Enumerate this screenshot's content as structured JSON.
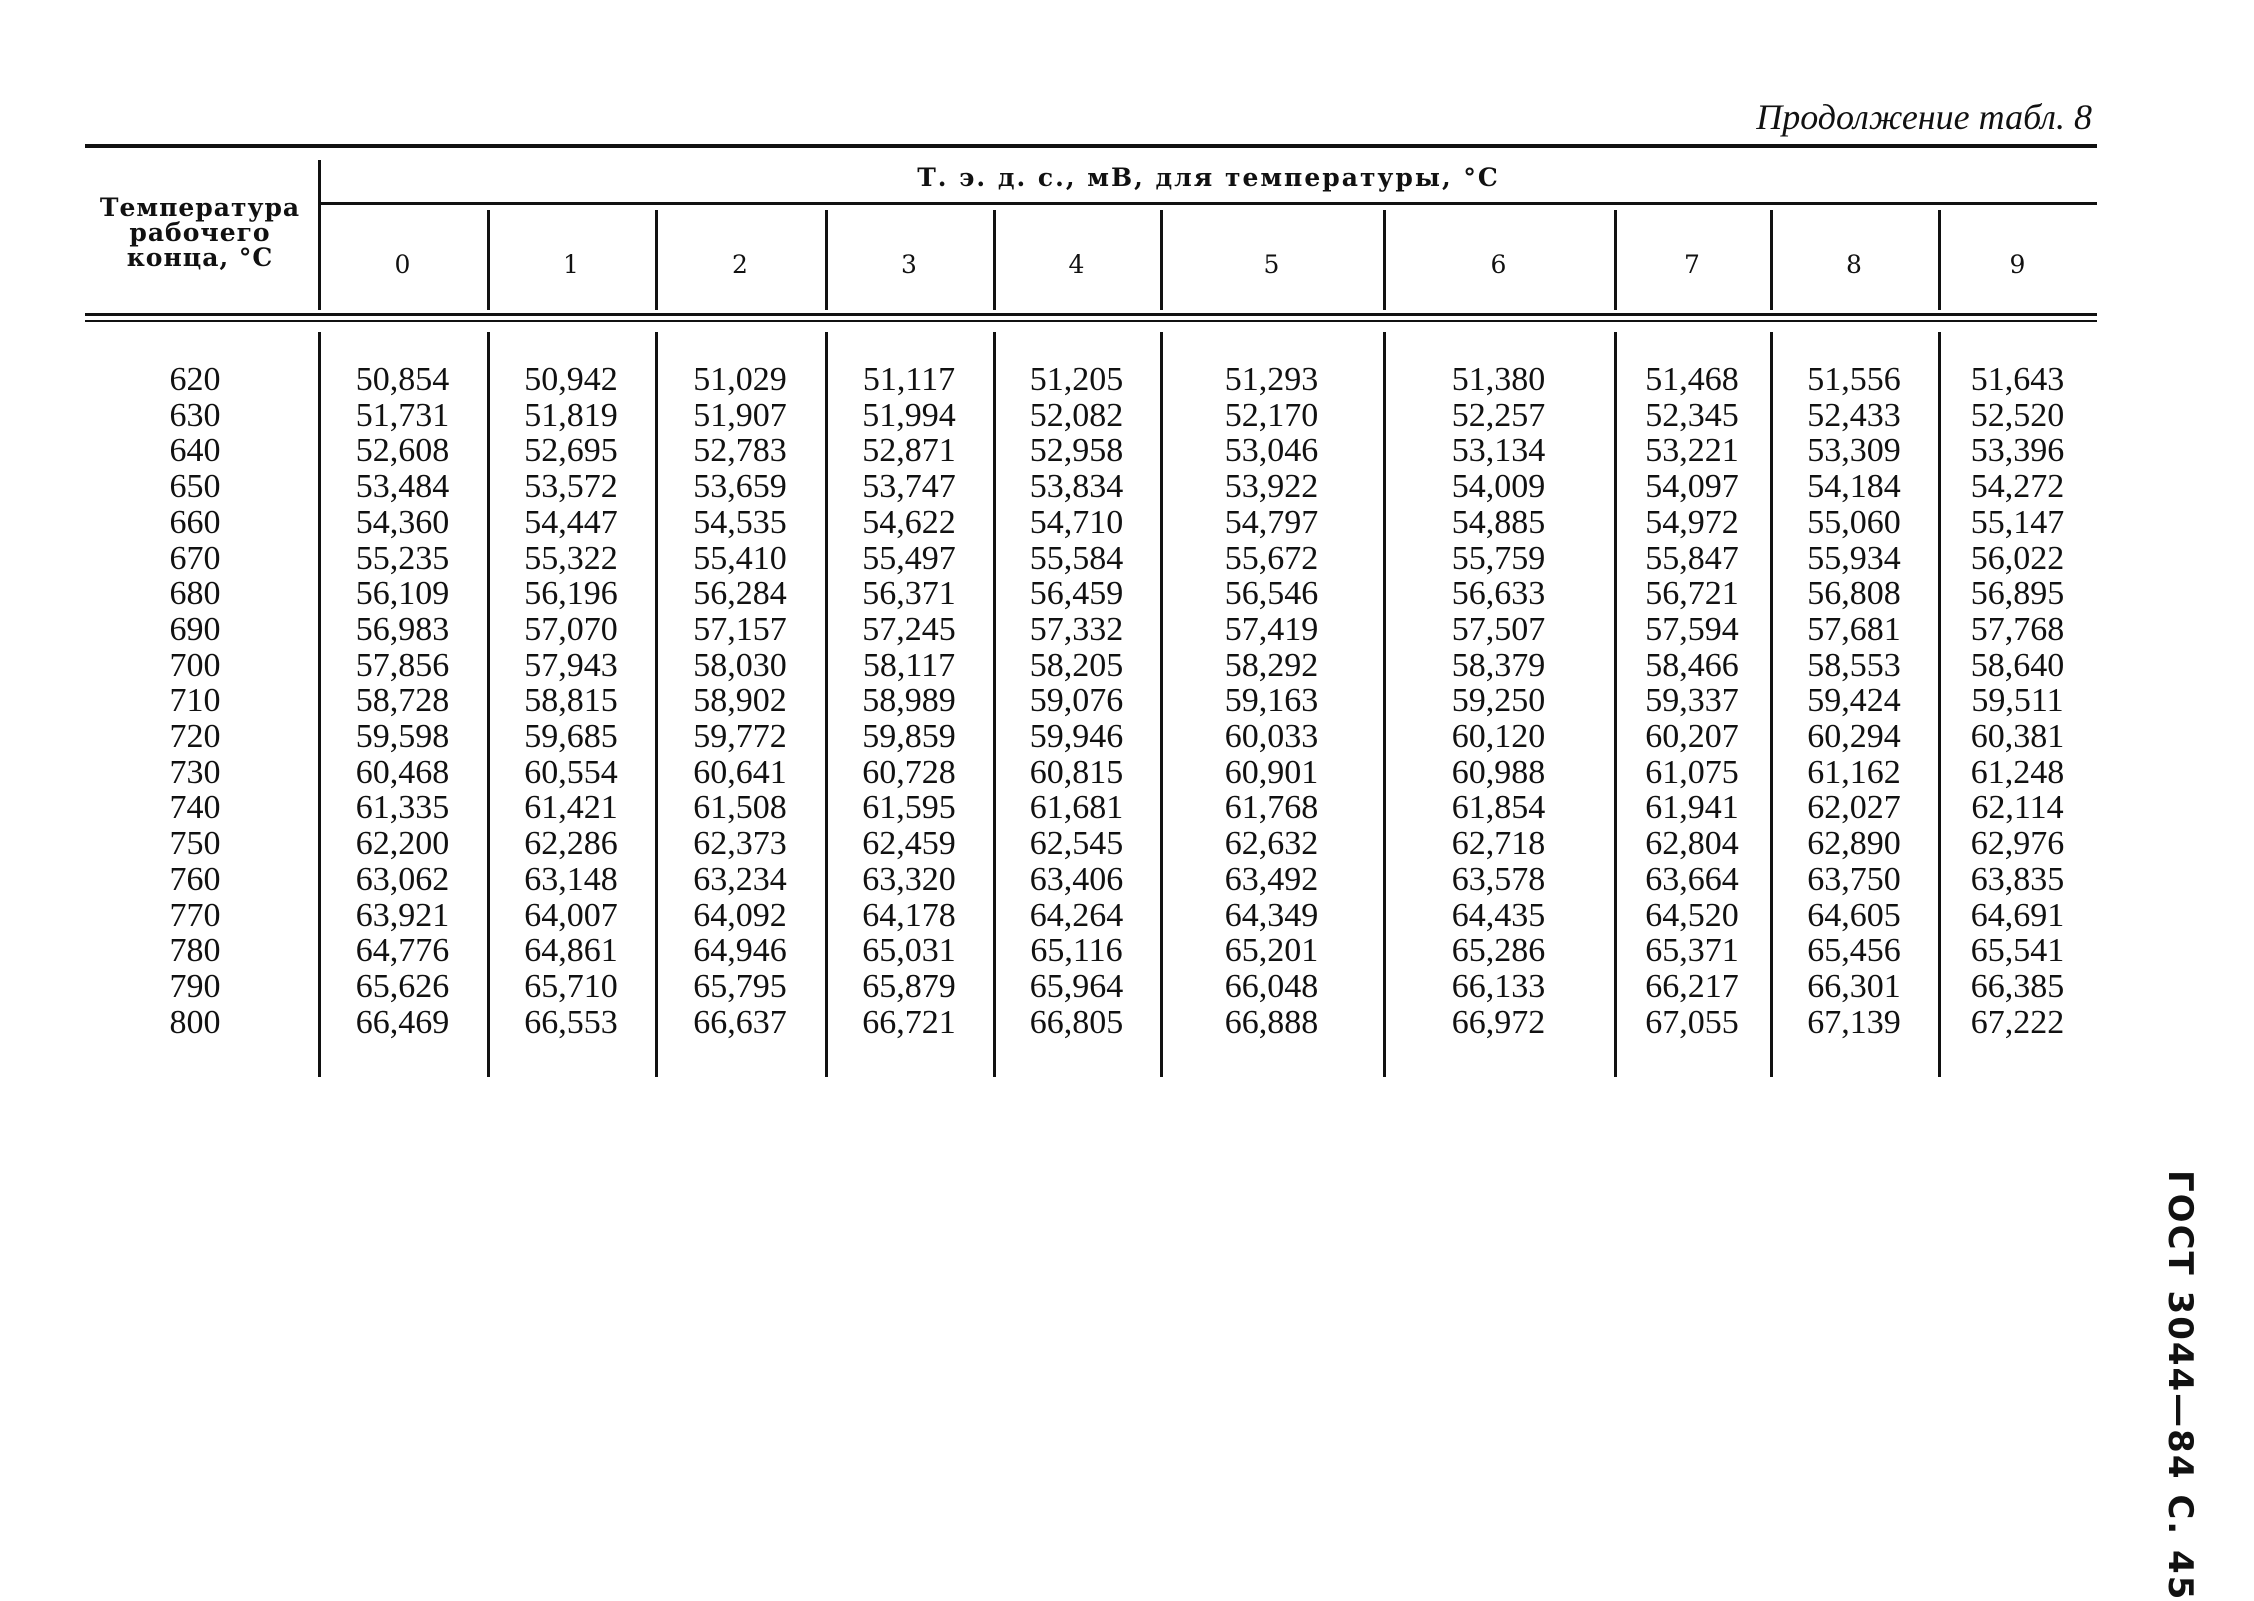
{
  "caption": "Продолжение табл. 8",
  "header": {
    "left": "Температура рабочего конца, °С",
    "top": "Т. э. д. с., мВ, для температуры, °С",
    "columns": [
      "0",
      "1",
      "2",
      "3",
      "4",
      "5",
      "6",
      "7",
      "8",
      "9"
    ]
  },
  "rows": [
    {
      "t": "620",
      "v": [
        "50,854",
        "50,942",
        "51,029",
        "51,117",
        "51,205",
        "51,293",
        "51,380",
        "51,468",
        "51,556",
        "51,643"
      ]
    },
    {
      "t": "630",
      "v": [
        "51,731",
        "51,819",
        "51,907",
        "51,994",
        "52,082",
        "52,170",
        "52,257",
        "52,345",
        "52,433",
        "52,520"
      ]
    },
    {
      "t": "640",
      "v": [
        "52,608",
        "52,695",
        "52,783",
        "52,871",
        "52,958",
        "53,046",
        "53,134",
        "53,221",
        "53,309",
        "53,396"
      ]
    },
    {
      "t": "650",
      "v": [
        "53,484",
        "53,572",
        "53,659",
        "53,747",
        "53,834",
        "53,922",
        "54,009",
        "54,097",
        "54,184",
        "54,272"
      ]
    },
    {
      "t": "660",
      "v": [
        "54,360",
        "54,447",
        "54,535",
        "54,622",
        "54,710",
        "54,797",
        "54,885",
        "54,972",
        "55,060",
        "55,147"
      ]
    },
    {
      "t": "670",
      "v": [
        "55,235",
        "55,322",
        "55,410",
        "55,497",
        "55,584",
        "55,672",
        "55,759",
        "55,847",
        "55,934",
        "56,022"
      ]
    },
    {
      "t": "680",
      "v": [
        "56,109",
        "56,196",
        "56,284",
        "56,371",
        "56,459",
        "56,546",
        "56,633",
        "56,721",
        "56,808",
        "56,895"
      ]
    },
    {
      "t": "690",
      "v": [
        "56,983",
        "57,070",
        "57,157",
        "57,245",
        "57,332",
        "57,419",
        "57,507",
        "57,594",
        "57,681",
        "57,768"
      ]
    },
    {
      "t": "700",
      "v": [
        "57,856",
        "57,943",
        "58,030",
        "58,117",
        "58,205",
        "58,292",
        "58,379",
        "58,466",
        "58,553",
        "58,640"
      ]
    },
    {
      "t": "710",
      "v": [
        "58,728",
        "58,815",
        "58,902",
        "58,989",
        "59,076",
        "59,163",
        "59,250",
        "59,337",
        "59,424",
        "59,511"
      ]
    },
    {
      "t": "720",
      "v": [
        "59,598",
        "59,685",
        "59,772",
        "59,859",
        "59,946",
        "60,033",
        "60,120",
        "60,207",
        "60,294",
        "60,381"
      ]
    },
    {
      "t": "730",
      "v": [
        "60,468",
        "60,554",
        "60,641",
        "60,728",
        "60,815",
        "60,901",
        "60,988",
        "61,075",
        "61,162",
        "61,248"
      ]
    },
    {
      "t": "740",
      "v": [
        "61,335",
        "61,421",
        "61,508",
        "61,595",
        "61,681",
        "61,768",
        "61,854",
        "61,941",
        "62,027",
        "62,114"
      ]
    },
    {
      "t": "750",
      "v": [
        "62,200",
        "62,286",
        "62,373",
        "62,459",
        "62,545",
        "62,632",
        "62,718",
        "62,804",
        "62,890",
        "62,976"
      ]
    },
    {
      "t": "760",
      "v": [
        "63,062",
        "63,148",
        "63,234",
        "63,320",
        "63,406",
        "63,492",
        "63,578",
        "63,664",
        "63,750",
        "63,835"
      ]
    },
    {
      "t": "770",
      "v": [
        "63,921",
        "64,007",
        "64,092",
        "64,178",
        "64,264",
        "64,349",
        "64,435",
        "64,520",
        "64,605",
        "64,691"
      ]
    },
    {
      "t": "780",
      "v": [
        "64,776",
        "64,861",
        "64,946",
        "65,031",
        "65,116",
        "65,201",
        "65,286",
        "65,371",
        "65,456",
        "65,541"
      ]
    },
    {
      "t": "790",
      "v": [
        "65,626",
        "65,710",
        "65,795",
        "65,879",
        "65,964",
        "66,048",
        "66,133",
        "66,217",
        "66,301",
        "66,385"
      ]
    },
    {
      "t": "800",
      "v": [
        "66,469",
        "66,553",
        "66,637",
        "66,721",
        "66,805",
        "66,888",
        "66,972",
        "67,055",
        "67,139",
        "67,222"
      ]
    }
  ],
  "side_label": "ГОСТ 3044—84 С. 45"
}
